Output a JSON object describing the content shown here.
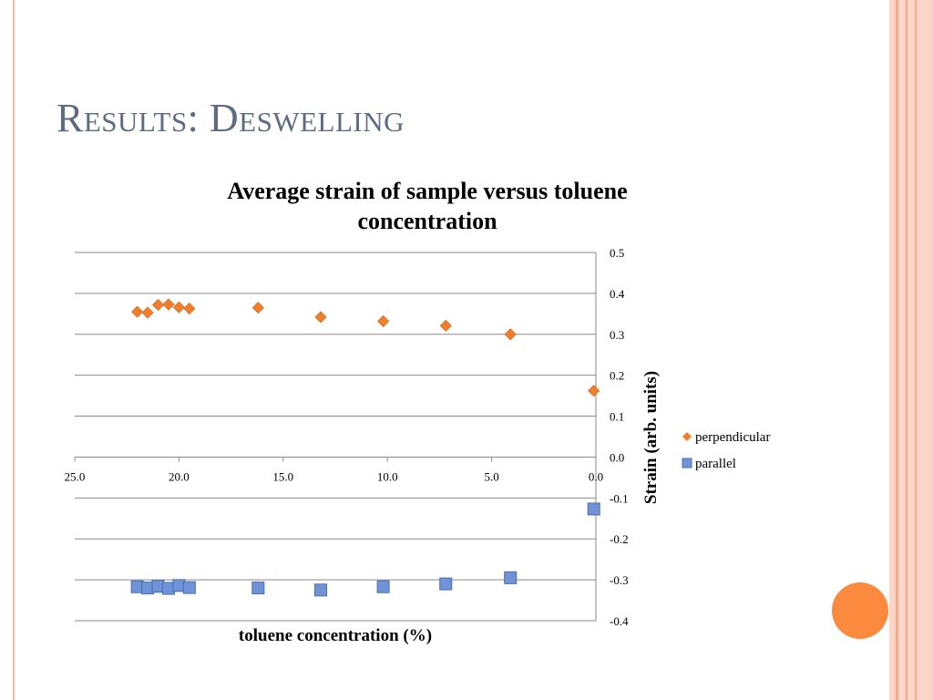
{
  "slide": {
    "title": "Results: Deswelling"
  },
  "colors": {
    "perpendicular": "#f07f2d",
    "parallel": "#6f93d6",
    "parallel_stroke": "#4a6fb3",
    "grid": "#8a8a8a",
    "accent_orb": "#fb8a3e"
  },
  "chart_data": {
    "type": "scatter",
    "title": "Average strain of sample versus toluene concentration",
    "xlabel": "toluene concentration (%)",
    "ylabel": "Strain (arb. units)",
    "x_reversed": true,
    "xlim": [
      0,
      25
    ],
    "ylim": [
      -0.4,
      0.5
    ],
    "x_ticks": [
      "25.0",
      "20.0",
      "15.0",
      "10.0",
      "5.0",
      "0.0"
    ],
    "y_ticks": [
      "0.5",
      "0.4",
      "0.3",
      "0.2",
      "0.1",
      "0.0",
      "-0.1",
      "-0.2",
      "-0.3",
      "-0.4"
    ],
    "grid": true,
    "legend_position": "right",
    "series": [
      {
        "name": "perpendicular",
        "marker": "diamond",
        "points": [
          {
            "x": 22.0,
            "y": 0.355
          },
          {
            "x": 21.5,
            "y": 0.353
          },
          {
            "x": 21.0,
            "y": 0.372
          },
          {
            "x": 20.5,
            "y": 0.373
          },
          {
            "x": 20.0,
            "y": 0.366
          },
          {
            "x": 19.5,
            "y": 0.363
          },
          {
            "x": 16.2,
            "y": 0.365
          },
          {
            "x": 13.2,
            "y": 0.342
          },
          {
            "x": 10.2,
            "y": 0.332
          },
          {
            "x": 7.2,
            "y": 0.321
          },
          {
            "x": 4.1,
            "y": 0.3
          },
          {
            "x": 0.1,
            "y": 0.162
          }
        ]
      },
      {
        "name": "parallel",
        "marker": "square",
        "points": [
          {
            "x": 22.0,
            "y": -0.317
          },
          {
            "x": 21.5,
            "y": -0.32
          },
          {
            "x": 21.0,
            "y": -0.316
          },
          {
            "x": 20.5,
            "y": -0.321
          },
          {
            "x": 20.0,
            "y": -0.314
          },
          {
            "x": 19.5,
            "y": -0.319
          },
          {
            "x": 16.2,
            "y": -0.32
          },
          {
            "x": 13.2,
            "y": -0.325
          },
          {
            "x": 10.2,
            "y": -0.317
          },
          {
            "x": 7.2,
            "y": -0.31
          },
          {
            "x": 4.1,
            "y": -0.295
          },
          {
            "x": 0.1,
            "y": -0.127
          }
        ]
      }
    ]
  }
}
